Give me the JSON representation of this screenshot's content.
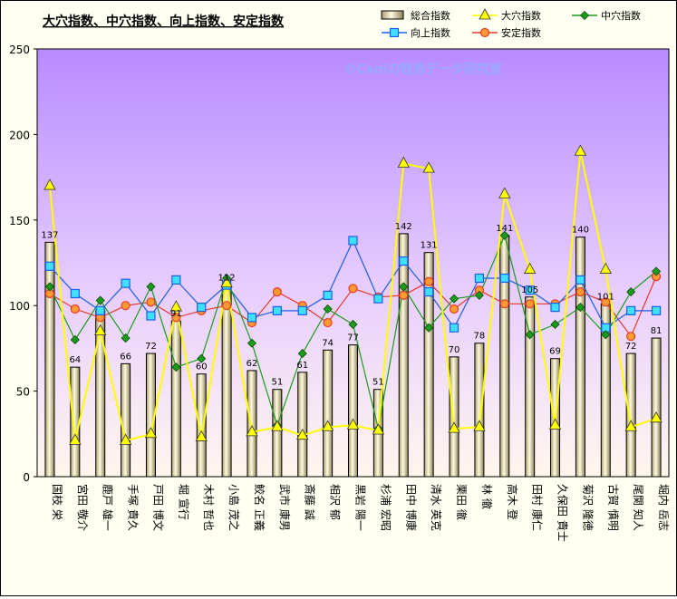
{
  "chart_data": {
    "type": "bar",
    "title": "大穴指数、中穴指数、向上指数、安定指数",
    "watermark": "©Caniの競馬データ研究室",
    "ylim": [
      0,
      250
    ],
    "yticks": [
      0,
      50,
      100,
      150,
      200,
      250
    ],
    "categories": [
      "国枝 栄",
      "宮田 敬介",
      "鹿戸 雄一",
      "手塚 貴久",
      "戸田 博文",
      "堀 宣行",
      "木村 哲也",
      "小島 茂之",
      "鮫名 正義",
      "武市 康男",
      "斎藤 誠",
      "相沢 郁",
      "黒岩 陽一",
      "杉浦 宏昭",
      "田中 博康",
      "清水 英克",
      "栗田 徹",
      "林 徹",
      "高木 登",
      "田村 康仁",
      "久保田 貴士",
      "菊沢 隆徳",
      "古賀 慎明",
      "尾関 知人",
      "堀内 岳志"
    ],
    "series": [
      {
        "name": "総合指数",
        "kind": "bar",
        "color": "#e8e4c4",
        "values": [
          137,
          64,
          97,
          66,
          72,
          91,
          60,
          112,
          62,
          51,
          61,
          74,
          77,
          51,
          142,
          131,
          70,
          78,
          141,
          105,
          69,
          140,
          101,
          72,
          81
        ]
      },
      {
        "name": "大穴指数",
        "kind": "line",
        "marker": "triangle",
        "color": "#ffff00",
        "values": [
          170,
          21,
          85,
          21,
          25,
          99,
          23,
          113,
          26,
          29,
          24,
          29,
          30,
          27,
          183,
          180,
          28,
          29,
          165,
          121,
          30,
          190,
          121,
          29,
          34
        ]
      },
      {
        "name": "中穴指数",
        "kind": "line",
        "marker": "diamond",
        "color": "#1a9c1a",
        "values": [
          111,
          80,
          103,
          81,
          111,
          64,
          69,
          116,
          78,
          30,
          72,
          98,
          89,
          28,
          111,
          87,
          104,
          106,
          141,
          83,
          89,
          99,
          83,
          108,
          120
        ]
      },
      {
        "name": "向上指数",
        "kind": "line",
        "marker": "square",
        "color": "#1d5fe6",
        "values": [
          123,
          107,
          97,
          113,
          94,
          115,
          99,
          112,
          93,
          97,
          97,
          106,
          138,
          104,
          126,
          108,
          87,
          116,
          116,
          109,
          99,
          115,
          87,
          97,
          97
        ]
      },
      {
        "name": "安定指数",
        "kind": "line",
        "marker": "circle",
        "color": "#e33a2a",
        "values": [
          107,
          98,
          93,
          100,
          102,
          93,
          97,
          100,
          90,
          108,
          100,
          90,
          110,
          105,
          106,
          114,
          98,
          109,
          101,
          101,
          101,
          108,
          102,
          82,
          117
        ]
      }
    ],
    "bar_labels": [
      "137",
      "64",
      "",
      "66",
      "72",
      "91",
      "60",
      "112",
      "62",
      "51",
      "61",
      "74",
      "77",
      "51",
      "142",
      "131",
      "70",
      "78",
      "141",
      "105",
      "69",
      "140",
      "101",
      "72",
      "81"
    ],
    "legend_position": "top-right",
    "grid": false
  }
}
